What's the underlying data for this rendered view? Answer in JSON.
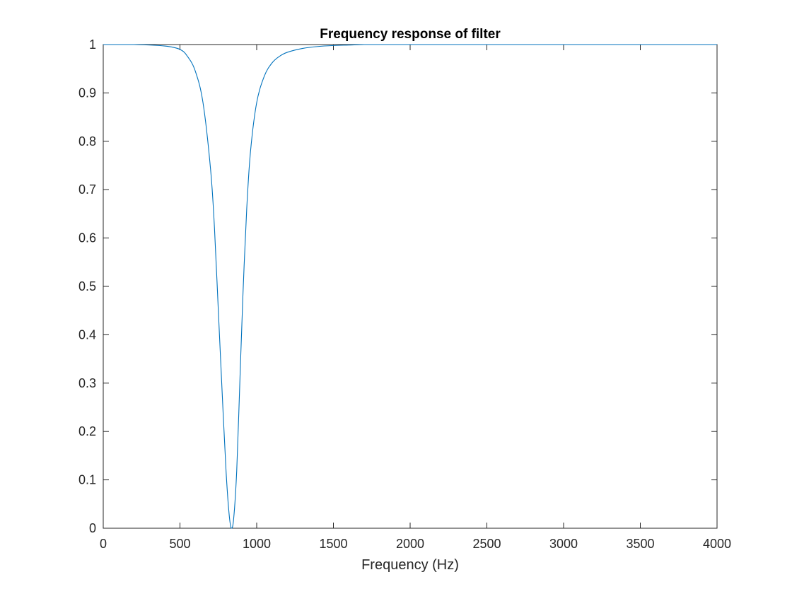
{
  "chart_data": {
    "type": "line",
    "title": "Frequency response of filter",
    "xlabel": "Frequency (Hz)",
    "ylabel": "",
    "xlim": [
      0,
      4000
    ],
    "ylim": [
      0,
      1
    ],
    "grid": false,
    "x_ticks": [
      0,
      500,
      1000,
      1500,
      2000,
      2500,
      3000,
      3500,
      4000
    ],
    "x_tick_labels": [
      "0",
      "500",
      "1000",
      "1500",
      "2000",
      "2500",
      "3000",
      "3500",
      "4000"
    ],
    "y_ticks": [
      0,
      0.1,
      0.2,
      0.3,
      0.4,
      0.5,
      0.6,
      0.7,
      0.8,
      0.9,
      1
    ],
    "y_tick_labels": [
      "0",
      "0.1",
      "0.2",
      "0.3",
      "0.4",
      "0.5",
      "0.6",
      "0.7",
      "0.8",
      "0.9",
      "1"
    ],
    "series": [
      {
        "color": "#0072BD",
        "x": [
          0,
          200,
          400,
          500,
          550,
          600,
          650,
          700,
          725,
          750,
          775,
          800,
          820,
          835,
          850,
          870,
          890,
          910,
          935,
          960,
          1000,
          1050,
          1100,
          1150,
          1200,
          1300,
          1400,
          1500,
          1600,
          1700,
          1800,
          2000,
          2500,
          3000,
          3500,
          4000
        ],
        "y": [
          1.0,
          1.0,
          0.997,
          0.99,
          0.975,
          0.945,
          0.88,
          0.74,
          0.62,
          0.45,
          0.28,
          0.12,
          0.03,
          0.0,
          0.02,
          0.12,
          0.3,
          0.48,
          0.66,
          0.78,
          0.88,
          0.935,
          0.962,
          0.976,
          0.984,
          0.992,
          0.996,
          0.998,
          0.999,
          1.0,
          1.0,
          1.0,
          1.0,
          1.0,
          1.0,
          1.0
        ]
      }
    ]
  }
}
